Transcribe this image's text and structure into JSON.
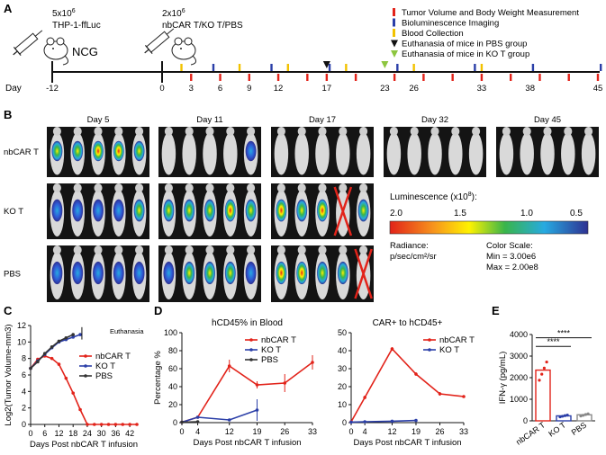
{
  "panels": {
    "A": {
      "letter": "A",
      "inoculation_label": "5x10",
      "inoculation_exp": "6",
      "cell_line": "THP-1-ffLuc",
      "mouse_strain": "NCG",
      "treatment_dose": "2x10",
      "treatment_exp": "6",
      "treatment_groups": "nbCAR T/KO T/PBS",
      "day_label": "Day",
      "timeline_days": [
        "-12",
        "0",
        "3",
        "6",
        "9",
        "12",
        "17",
        "23",
        "26",
        "33",
        "38",
        "45"
      ],
      "legend": [
        {
          "text": "Tumor Volume and Body Weight Measurement",
          "color": "#e2231a",
          "marker": "bar"
        },
        {
          "text": "Bioluminescence Imaging",
          "color": "#2b3fa8",
          "marker": "bar"
        },
        {
          "text": "Blood Collection",
          "color": "#f2c200",
          "marker": "bar"
        },
        {
          "text": "Euthanasia of mice in PBS group",
          "color": "#111111",
          "marker": "triangle"
        },
        {
          "text": "Euthanasia of mice in KO T group",
          "color": "#8dc63f",
          "marker": "triangle"
        }
      ]
    },
    "B": {
      "letter": "B",
      "days": [
        "Day 5",
        "Day 11",
        "Day 17",
        "Day 32",
        "Day 45"
      ],
      "groups": [
        "nbCAR T",
        "KO T",
        "PBS"
      ],
      "luminescence_title": "Luminescence (x10",
      "luminescence_exp": "8",
      "luminescence_suffix": "):",
      "scale_ticks": [
        "2.0",
        "1.5",
        "1.0",
        "0.5"
      ],
      "radiance_label": "Radiance:",
      "radiance_unit": "p/sec/cm²/sr",
      "color_scale_label": "Color Scale:",
      "color_scale_min": "Min = 3.00e6",
      "color_scale_max": "Max = 2.00e8"
    },
    "C": {
      "letter": "C",
      "euthanasia_label": "Euthanasia"
    },
    "D": {
      "letter": "D"
    },
    "E": {
      "letter": "E",
      "significance_1": "****",
      "significance_2": "****"
    }
  },
  "chart_data": [
    {
      "id": "C",
      "type": "line",
      "title": "",
      "xlabel": "Days Post nbCAR T infusion",
      "ylabel": "Log2(Tumor Volume-mm3)",
      "xlim": [
        0,
        45
      ],
      "ylim": [
        0,
        12
      ],
      "xticks": [
        "0",
        "6",
        "12",
        "18",
        "24",
        "30",
        "36",
        "42"
      ],
      "yticks": [
        "0",
        "2",
        "4",
        "6",
        "8",
        "10",
        "12"
      ],
      "series": [
        {
          "name": "nbCAR T",
          "color": "#e2231a",
          "x": [
            0,
            3,
            6,
            9,
            12,
            15,
            18,
            21,
            24,
            27,
            30,
            33,
            36,
            39,
            42,
            45
          ],
          "y": [
            6.8,
            7.9,
            8.3,
            8.0,
            7.3,
            5.6,
            3.8,
            1.8,
            0,
            0,
            0,
            0,
            0,
            0,
            0,
            0
          ]
        },
        {
          "name": "KO T",
          "color": "#2b3fa8",
          "x": [
            0,
            3,
            6,
            9,
            12,
            15,
            18,
            21
          ],
          "y": [
            6.8,
            7.7,
            8.5,
            9.3,
            10.0,
            10.3,
            10.6,
            10.9
          ]
        },
        {
          "name": "PBS",
          "color": "#333333",
          "x": [
            0,
            3,
            6,
            9,
            12,
            15,
            18
          ],
          "y": [
            6.8,
            7.6,
            8.6,
            9.4,
            10.1,
            10.5,
            10.9
          ]
        }
      ]
    },
    {
      "id": "D1",
      "type": "line",
      "title": "hCD45% in Blood",
      "xlabel": "Days Post nbCAR T infusion",
      "ylabel": "Percentage %",
      "xlim": [
        0,
        33
      ],
      "ylim": [
        0,
        100
      ],
      "xticks": [
        "0",
        "4",
        "12",
        "19",
        "26",
        "33"
      ],
      "yticks": [
        "0",
        "20",
        "40",
        "60",
        "80",
        "100"
      ],
      "series": [
        {
          "name": "nbCAR T",
          "color": "#e2231a",
          "x": [
            0,
            4,
            12,
            19,
            26,
            33
          ],
          "y": [
            0.5,
            6,
            63,
            42,
            44,
            67
          ]
        },
        {
          "name": "KO T",
          "color": "#2b3fa8",
          "x": [
            0,
            4,
            12,
            19
          ],
          "y": [
            0.5,
            6,
            3,
            14
          ]
        },
        {
          "name": "PBS",
          "color": "#333333",
          "x": [
            0,
            4
          ],
          "y": [
            0.5,
            1
          ]
        }
      ]
    },
    {
      "id": "D2",
      "type": "line",
      "title": "CAR+ to hCD45+",
      "xlabel": "Days Post nbCAR T infusion",
      "ylabel": "",
      "xlim": [
        0,
        33
      ],
      "ylim": [
        0,
        50
      ],
      "xticks": [
        "0",
        "4",
        "12",
        "19",
        "26",
        "33"
      ],
      "yticks": [
        "0",
        "10",
        "20",
        "30",
        "40",
        "50"
      ],
      "series": [
        {
          "name": "nbCAR T",
          "color": "#e2231a",
          "x": [
            0,
            4,
            12,
            19,
            26,
            33
          ],
          "y": [
            0.5,
            14,
            41,
            27,
            16,
            14.5
          ]
        },
        {
          "name": "KO T",
          "color": "#2b3fa8",
          "x": [
            0,
            4,
            12,
            19
          ],
          "y": [
            0.3,
            0.5,
            0.8,
            1.2
          ]
        }
      ]
    },
    {
      "id": "E",
      "type": "bar",
      "title": "",
      "xlabel": "",
      "ylabel": "IFN-γ (pg/mL)",
      "ylim": [
        0,
        4000
      ],
      "yticks": [
        "0",
        "1000",
        "2000",
        "3000",
        "4000"
      ],
      "categories": [
        "nbCAR T",
        "KO T",
        "PBS"
      ],
      "values": [
        2350,
        230,
        280
      ],
      "colors": [
        "#e2231a",
        "#2b3fa8",
        "#888888"
      ]
    }
  ]
}
